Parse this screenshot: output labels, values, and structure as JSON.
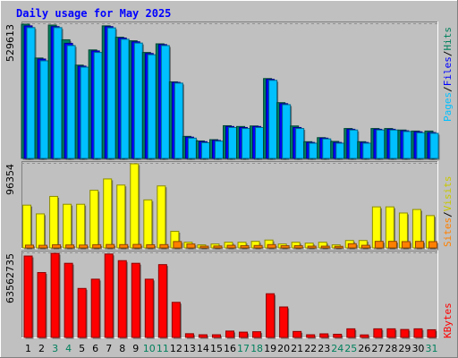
{
  "chart_data": [
    {
      "type": "bar",
      "title": "Daily usage for May 2025",
      "categories": [
        "1",
        "2",
        "3",
        "4",
        "5",
        "6",
        "7",
        "8",
        "9",
        "10",
        "11",
        "12",
        "13",
        "14",
        "15",
        "16",
        "17",
        "18",
        "19",
        "20",
        "21",
        "22",
        "23",
        "24",
        "25",
        "26",
        "27",
        "28",
        "29",
        "30",
        "31"
      ],
      "weekend_days": [
        "3",
        "4",
        "10",
        "11",
        "17",
        "18",
        "24",
        "25",
        "31"
      ],
      "panels": [
        {
          "id": "pages-files-hits",
          "y_tick_label": "529613",
          "ylim": [
            0,
            529613
          ],
          "series": [
            {
              "name": "Hits",
              "color": "#00805c",
              "values": [
                529613,
                396000,
                526000,
                468000,
                368000,
                428000,
                523000,
                478000,
                464000,
                418000,
                452000,
                302000,
                87000,
                69000,
                74000,
                129000,
                126000,
                128000,
                315000,
                220000,
                128000,
                66000,
                82000,
                67000,
                118000,
                66000,
                118000,
                118000,
                112000,
                108000,
                108000
              ]
            },
            {
              "name": "Files",
              "color": "#0000ff",
              "values": [
                523000,
                392000,
                520000,
                454000,
                364000,
                424000,
                520000,
                475000,
                460000,
                414000,
                449000,
                300000,
                84000,
                66000,
                71000,
                126000,
                122000,
                126000,
                312000,
                216000,
                122000,
                63000,
                80000,
                63000,
                115000,
                63000,
                115000,
                115000,
                109000,
                105000,
                102000
              ]
            },
            {
              "name": "Pages",
              "color": "#00c0ff",
              "values": [
                516000,
                385000,
                516000,
                445000,
                360000,
                418000,
                515000,
                470000,
                455000,
                409000,
                445000,
                297000,
                80000,
                62000,
                68000,
                122000,
                118000,
                122000,
                308000,
                212000,
                118000,
                60000,
                77000,
                60000,
                112000,
                60000,
                112000,
                112000,
                106000,
                101000,
                99000
              ]
            }
          ]
        },
        {
          "id": "sites-visits",
          "y_tick_label": "96354",
          "ylim": [
            0,
            96354
          ],
          "series": [
            {
              "name": "Visits",
              "color": "#ffff00",
              "values": [
                49000,
                39000,
                59000,
                50000,
                50000,
                66000,
                79000,
                72000,
                96354,
                55000,
                71000,
                19000,
                6500,
                3500,
                4500,
                6500,
                6500,
                7500,
                9000,
                4500,
                6500,
                5500,
                6500,
                3500,
                8500,
                8500,
                47000,
                47000,
                40000,
                44000,
                37000
              ]
            },
            {
              "name": "Sites",
              "color": "#ff8000",
              "values": [
                3200,
                3000,
                3600,
                3400,
                3300,
                3700,
                3900,
                3800,
                4000,
                3600,
                3800,
                7300,
                4500,
                2000,
                2200,
                3000,
                2500,
                2800,
                3800,
                2500,
                2500,
                2000,
                2000,
                1800,
                4800,
                3000,
                7500,
                7500,
                7200,
                7500,
                7200
              ]
            }
          ]
        },
        {
          "id": "kbytes",
          "y_tick_label": "63562735",
          "ylim": [
            0,
            63562735
          ],
          "series": [
            {
              "name": "KBytes",
              "color": "#ff0000",
              "values": [
                61500000,
                49000000,
                63562735,
                56000000,
                37000000,
                44000000,
                63000000,
                58000000,
                56000000,
                44000000,
                55000000,
                26500000,
                2800000,
                2000000,
                2000000,
                4800000,
                4000000,
                4300000,
                33000000,
                23000000,
                4500000,
                2000000,
                2700000,
                2400000,
                6500000,
                1900000,
                6500000,
                6500000,
                6000000,
                6500000,
                5800000
              ]
            }
          ]
        }
      ],
      "legend_text": {
        "pages": "Pages",
        "files": "Files",
        "hits": "Hits",
        "sites": "Sites",
        "visits": "Visits",
        "kbytes": "KBytes",
        "slash": "/"
      },
      "colors": {
        "title": "#0000ff",
        "weekday_label": "#000000",
        "weekend_label": "#00805c",
        "panel_bg": "#c0c0c0",
        "frame_bg": "#c0c0c0"
      }
    }
  ]
}
